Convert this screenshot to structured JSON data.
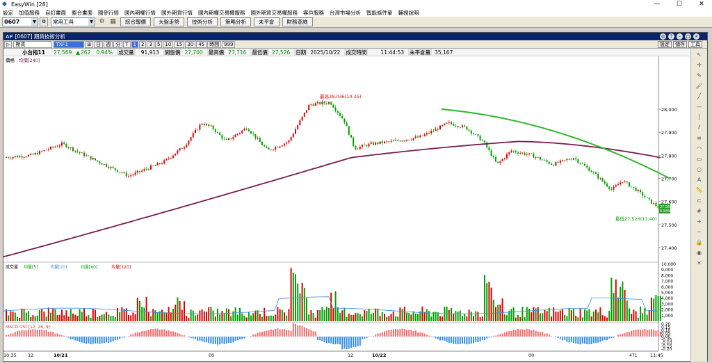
{
  "window": {
    "app_title": "EasyWin [28]",
    "minimize": "—",
    "maximize": "☐",
    "close": "✕"
  },
  "menu": [
    "設定",
    "加值服務",
    "自訂畫面",
    "整合畫面",
    "國參行情",
    "國內期權行情",
    "國外期貨行情",
    "國內期權交易權服務",
    "國外期貨交易權服務",
    "客戶服務",
    "台灣市場分析",
    "智能條件單",
    "輔視說明"
  ],
  "toolbar": {
    "symbol_code": "0607",
    "tools_combo": "常用工具",
    "buttons": [
      "綜合報價",
      "大盤走勢",
      "技術分析",
      "策略分析",
      "未平倉",
      "財務查詢"
    ]
  },
  "chart_window": {
    "title": "[0607] 期貨技術分析",
    "product_select": "期貨",
    "contract_select": "TXF1",
    "periods": [
      "日",
      "週",
      "分",
      "T",
      "1",
      "2",
      "3",
      "5",
      "10",
      "15",
      "30",
      "45",
      "時間",
      "999"
    ],
    "right_buttons": [
      "設定",
      "儲存",
      "工具"
    ]
  },
  "quote": {
    "name": "小台指11",
    "last": "27,569",
    "change_arrow": "▲",
    "change": "262",
    "pct": "0.94%",
    "vol_label": "成交量",
    "vol": "91,913",
    "open_label": "開盤價",
    "open": "27,700",
    "high_label": "最高價",
    "high": "27,716",
    "low_label": "最低價",
    "low": "27,526",
    "date_label": "日期",
    "date": "2025/10/22",
    "time_label": "成交時間",
    "time": "11:44:53",
    "oi_label": "未平倉量",
    "oi": "35,167"
  },
  "price_panel": {
    "legend_a": "價格",
    "legend_b": "均價[240]",
    "y_ticks": [
      "28,000",
      "27,900",
      "27,800",
      "27,700",
      "27,600",
      "27,500",
      "27,400"
    ],
    "high_note": "最高28,036(10:25)",
    "low_note": "最低27,526(11:40)",
    "last_box_price": "27,569",
    "last_box_pct": "0.94%"
  },
  "volume_panel": {
    "legend": [
      "成交量",
      "均量[5]",
      "均量[20]",
      "均量[60]",
      "均量[120]"
    ],
    "y_ticks": [
      "10,000",
      "9,000",
      "8,000",
      "7,000",
      "6,000",
      "5,000",
      "4,000",
      "3,000",
      "2,000",
      "1,000"
    ]
  },
  "macd_panel": {
    "legend": "MACD OSC[12, 26, 9]",
    "y_ticks": [
      "0.20",
      "0.15",
      "0.10",
      "0.05",
      "0.00",
      "-0.05",
      "-0.10",
      "-0.15",
      "-0.20"
    ]
  },
  "x_axis": {
    "labels": [
      "10:35",
      "12",
      "10/21",
      "00",
      "12",
      "10/22",
      "00",
      "11:45"
    ],
    "zoom": "471"
  },
  "colors": {
    "up": "#e00000",
    "down": "#00a000",
    "ma_long": "#7b1c4e",
    "ma_green": "#2db82d",
    "macd_pos": "#f07070",
    "macd_neg": "#3a8fe0"
  }
}
